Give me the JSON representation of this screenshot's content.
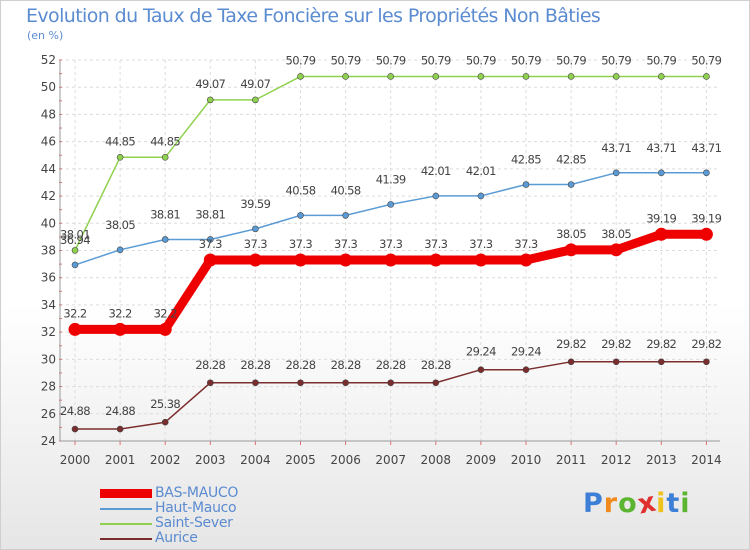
{
  "chart_data": {
    "type": "line",
    "title": "Evolution du Taux de Taxe Foncière sur les Propriétés Non Bâties",
    "ylabel": "(en %)",
    "xlabel": "",
    "ylim": [
      24,
      52
    ],
    "yticks": [
      "24",
      "26",
      "28",
      "30",
      "32",
      "34",
      "36",
      "38",
      "40",
      "42",
      "44",
      "46",
      "48",
      "50",
      "52"
    ],
    "x": [
      "2000",
      "2001",
      "2002",
      "2003",
      "2004",
      "2005",
      "2006",
      "2007",
      "2008",
      "2009",
      "2010",
      "2011",
      "2012",
      "2013",
      "2014"
    ],
    "series": [
      {
        "name": "BAS-MAUCO",
        "color": "#ee0000",
        "values": [
          32.2,
          32.2,
          32.2,
          37.3,
          37.3,
          37.3,
          37.3,
          37.3,
          37.3,
          37.3,
          37.3,
          38.05,
          38.05,
          39.19,
          39.19
        ],
        "labels": [
          "32.2",
          "32.2",
          "32.2",
          "37.3",
          "37.3",
          "37.3",
          "37.3",
          "37.3",
          "37.3",
          "37.3",
          "37.3",
          "38.05",
          "38.05",
          "39.19",
          "39.19"
        ]
      },
      {
        "name": "Haut-Mauco",
        "color": "#5b9bd5",
        "values": [
          36.94,
          38.05,
          38.81,
          38.81,
          39.59,
          40.58,
          40.58,
          41.39,
          42.01,
          42.01,
          42.85,
          42.85,
          43.71,
          43.71,
          43.71
        ],
        "labels": [
          "36.94",
          "38.05",
          "38.81",
          "38.81",
          "39.59",
          "40.58",
          "40.58",
          "41.39",
          "42.01",
          "42.01",
          "42.85",
          "42.85",
          "43.71",
          "43.71",
          "43.71"
        ]
      },
      {
        "name": "Saint-Sever",
        "color": "#8fd14f",
        "values": [
          38.01,
          44.85,
          44.85,
          49.07,
          49.07,
          50.79,
          50.79,
          50.79,
          50.79,
          50.79,
          50.79,
          50.79,
          50.79,
          50.79,
          50.79
        ],
        "labels": [
          "38.01",
          "44.85",
          "44.85",
          "49.07",
          "49.07",
          "50.79",
          "50.79",
          "50.79",
          "50.79",
          "50.79",
          "50.79",
          "50.79",
          "50.79",
          "50.79",
          "50.79"
        ]
      },
      {
        "name": "Aurice",
        "color": "#7b2c2c",
        "values": [
          24.88,
          24.88,
          25.38,
          28.28,
          28.28,
          28.28,
          28.28,
          28.28,
          28.28,
          29.24,
          29.24,
          29.82,
          29.82,
          29.82,
          29.82
        ],
        "labels": [
          "24.88",
          "24.88",
          "25.38",
          "28.28",
          "28.28",
          "28.28",
          "28.28",
          "28.28",
          "28.28",
          "29.24",
          "29.24",
          "29.82",
          "29.82",
          "29.82",
          "29.82"
        ]
      }
    ]
  },
  "logo": {
    "letters": [
      "P",
      "r",
      "o",
      "x",
      "i",
      "t",
      "i"
    ],
    "colors": [
      "#3d7fd6",
      "#f08a1c",
      "#5bb531",
      "#e0312f",
      "#f0c21c",
      "#3d7fd6",
      "#5bb531"
    ]
  }
}
